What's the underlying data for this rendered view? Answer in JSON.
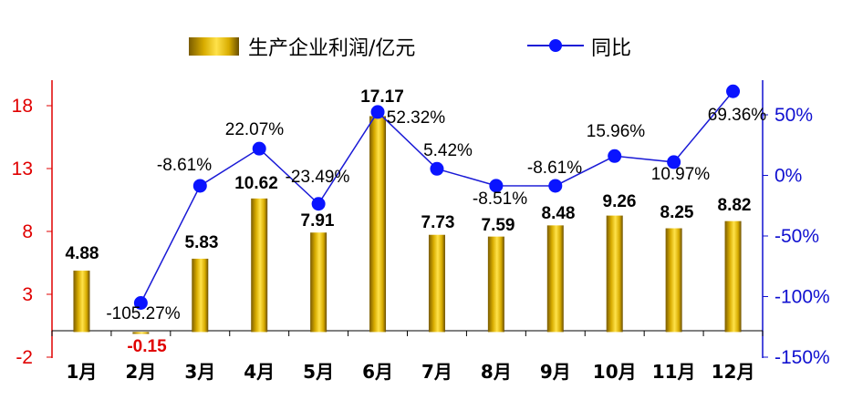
{
  "chart_data": {
    "type": "bar",
    "categories": [
      "1月",
      "2月",
      "3月",
      "4月",
      "5月",
      "6月",
      "7月",
      "8月",
      "9月",
      "10月",
      "11月",
      "12月"
    ],
    "series": [
      {
        "name": "生产企业利润/亿元",
        "type": "bar",
        "axis": "left",
        "values": [
          4.88,
          -0.15,
          5.83,
          10.62,
          7.91,
          17.17,
          7.73,
          7.59,
          8.48,
          9.26,
          8.25,
          8.82
        ],
        "labels": [
          "4.88",
          "-0.15",
          "5.83",
          "10.62",
          "7.91",
          "17.17",
          "7.73",
          "7.59",
          "8.48",
          "9.26",
          "8.25",
          "8.82"
        ]
      },
      {
        "name": "同比",
        "type": "line",
        "axis": "right",
        "values": [
          null,
          -105.27,
          -8.61,
          22.07,
          -23.49,
          52.32,
          5.42,
          -8.51,
          -8.61,
          15.96,
          10.97,
          69.36
        ],
        "labels": [
          "",
          "-105.27%",
          "-8.61%",
          "22.07%",
          "-23.49%",
          "52.32%",
          "5.42%",
          "-8.51%",
          "-8.61%",
          "15.96%",
          "10.97%",
          "69.36%"
        ]
      }
    ],
    "left_axis": {
      "ticks": [
        "18",
        "13",
        "8",
        "3",
        "-2"
      ],
      "ylim": [
        -2,
        20
      ]
    },
    "right_axis": {
      "ticks": [
        "50%",
        "0%",
        "-50%",
        "-100%",
        "-150%"
      ],
      "ylim": [
        -150,
        50
      ]
    },
    "legend_position": "top",
    "colors": {
      "bar": "#d4a800",
      "line": "#1a1ad6",
      "marker": "#0a14ff",
      "left_axis": "#e00000",
      "right_axis": "#1010d0"
    }
  }
}
